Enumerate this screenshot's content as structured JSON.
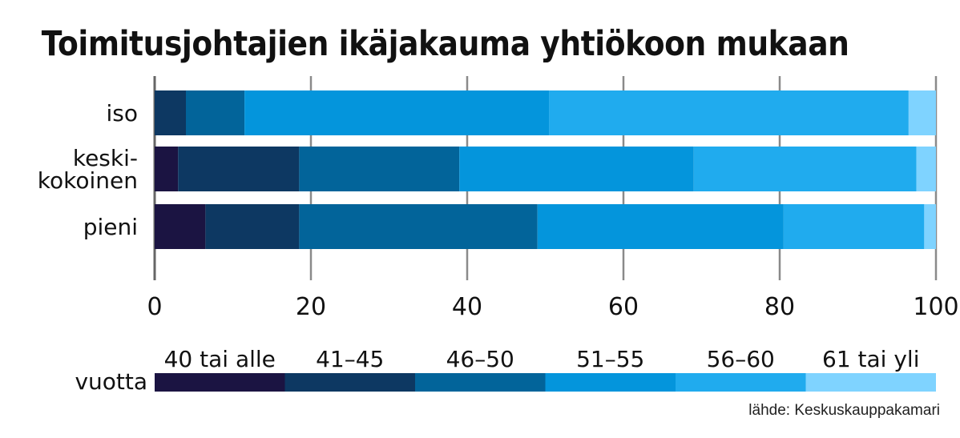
{
  "chart_data": {
    "type": "bar",
    "orientation": "horizontal",
    "stacked": true,
    "title": "Toimitusjohtajien ikäjakauma yhtiökoon mukaan",
    "categories": [
      "iso",
      "keski-\nkokoinen",
      "pieni"
    ],
    "xlim": [
      0,
      100
    ],
    "xticks": [
      "0",
      "20",
      "40",
      "60",
      "80",
      "100"
    ],
    "grid": true,
    "legend_title": "vuotta",
    "legend_position": "bottom",
    "series": [
      {
        "name": "40 tai alle",
        "color": "#1b1442",
        "values": [
          0,
          3,
          6.5
        ]
      },
      {
        "name": "41–45",
        "color": "#0d3862",
        "values": [
          4,
          15.5,
          12
        ]
      },
      {
        "name": "46–50",
        "color": "#02649a",
        "values": [
          7.5,
          20.5,
          30.5
        ]
      },
      {
        "name": "51–55",
        "color": "#0495dc",
        "values": [
          39,
          30,
          31.5
        ]
      },
      {
        "name": "56–60",
        "color": "#20abee",
        "values": [
          46,
          28.5,
          18
        ]
      },
      {
        "name": "61 tai yli",
        "color": "#7fd3ff",
        "values": [
          3.5,
          2.5,
          1.5
        ]
      }
    ]
  },
  "source": "lähde: Keskuskauppakamari"
}
